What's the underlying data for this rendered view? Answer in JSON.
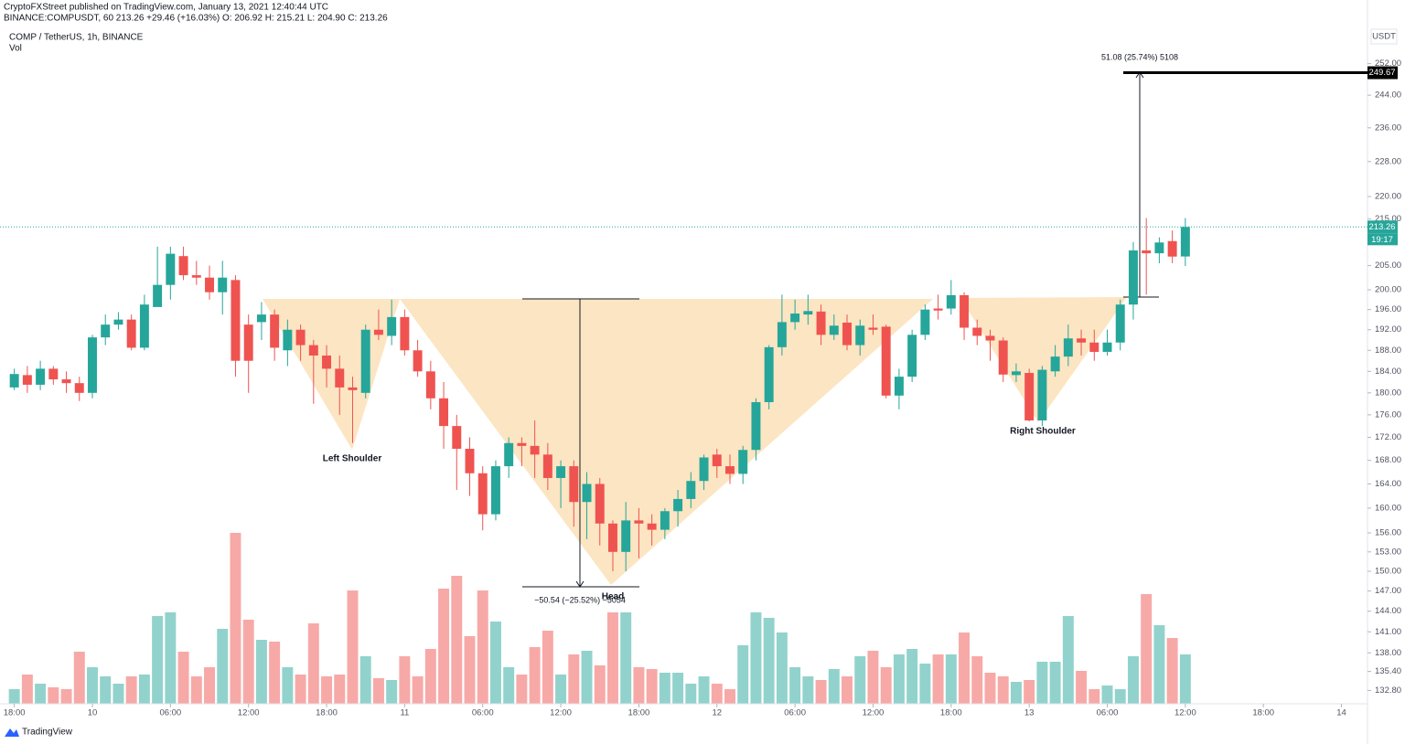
{
  "chart_data": {
    "type": "candlestick",
    "header": "CryptoFXStreet published on TradingView.com, January 13, 2021 12:40:44 UTC",
    "ohlc_line": "BINANCE:COMPUSDT, 60  213.26  +29.46 (+16.03%)  O: 206.92  H: 215.21  L: 204.90  C: 213.26",
    "title": "COMP / TetherUS, 1h, BINANCE",
    "volume_label": "Vol",
    "currency": "USDT",
    "brand": "TradingView",
    "price_label": 213.26,
    "countdown": "19:17",
    "target_price": 249.67,
    "up_color": "#26a69a",
    "down_color": "#ef5350",
    "log_scale": true,
    "annotations": {
      "left": "Left Shoulder",
      "head": "Head",
      "right": "Right Shoulder",
      "measure_up": "51.08 (25.74%) 5108",
      "measure_down": "−50.54 (−25.52%) −5054"
    },
    "open": [
      181,
      183.3,
      181.5,
      184.5,
      182.5,
      181.8,
      180,
      190.5,
      193,
      194,
      188.5,
      196.5,
      201,
      207,
      203,
      202.5,
      199.5,
      202,
      193,
      193.5,
      195,
      188,
      192,
      189,
      187,
      184.5,
      181,
      180,
      192,
      190.8,
      194.5,
      188,
      184,
      179,
      174,
      170,
      165.8,
      159,
      167,
      171,
      170.5,
      169,
      165,
      167,
      161,
      164,
      157.5,
      153,
      158,
      157.5,
      156.5,
      159.5,
      161.5,
      164.5,
      169,
      167,
      165.7,
      169.8,
      178.3,
      188.6,
      193.5,
      195,
      195.6,
      191,
      193.4,
      189,
      192.4,
      192.6,
      179.5,
      183,
      191,
      196.2,
      196.2,
      198.9,
      192.4,
      190.8,
      189.9,
      183.3,
      183.7,
      175,
      184,
      186.8,
      190.3,
      189.5,
      187.7,
      189.5,
      197,
      208.2,
      207.6,
      210.2,
      206.92
    ],
    "high": [
      184.5,
      185,
      186,
      185,
      184,
      183,
      191,
      195,
      195.5,
      195,
      199,
      209,
      209,
      209,
      206,
      205,
      206,
      203,
      195,
      197.5,
      196,
      194,
      193,
      190,
      189,
      187,
      183,
      193,
      196,
      198,
      196,
      190,
      186,
      182,
      176,
      172,
      167,
      168,
      172,
      172,
      175,
      171,
      168,
      168,
      166,
      165,
      158,
      161,
      160,
      159,
      160,
      163,
      166,
      169,
      170,
      169,
      170.5,
      179,
      189,
      199,
      198,
      199,
      197,
      195,
      195,
      194,
      195,
      193,
      184.5,
      192,
      197,
      199,
      202,
      199.5,
      194,
      192,
      190.5,
      185.5,
      184.5,
      185,
      189,
      193,
      192,
      192,
      192,
      198,
      210,
      215.2,
      211,
      212.5,
      215.21
    ],
    "low": [
      180.5,
      180,
      180.5,
      181.5,
      180,
      178.5,
      179,
      189,
      192,
      188,
      188,
      197,
      198,
      202,
      201,
      198,
      195,
      183,
      180,
      190,
      186,
      185,
      186,
      178,
      181,
      176,
      171,
      179,
      190,
      189,
      187,
      183,
      177,
      170,
      163,
      162,
      156.4,
      158,
      165,
      167,
      165,
      163,
      160,
      157,
      155,
      154,
      150,
      150,
      152,
      154,
      155,
      157,
      160,
      163,
      165,
      164,
      164,
      168,
      177,
      187,
      192,
      193,
      189,
      190,
      188,
      187,
      191,
      179,
      177,
      182,
      190,
      194,
      195,
      190,
      189,
      186,
      182,
      182,
      174.8,
      174,
      183,
      185,
      187,
      186,
      187,
      188,
      194,
      199,
      205.5,
      205.5,
      204.9
    ],
    "close": [
      183.5,
      181.5,
      184.5,
      182.5,
      181.8,
      180,
      190.5,
      193,
      194,
      188.5,
      197,
      201,
      207.5,
      203,
      202.5,
      199.5,
      202.5,
      186,
      186,
      195,
      188.5,
      192,
      189,
      187,
      184.5,
      181,
      180.5,
      192,
      191,
      194.5,
      188,
      184,
      179,
      174,
      170,
      165.8,
      159,
      167,
      171,
      170.5,
      169,
      165,
      167,
      161,
      164,
      157.5,
      153,
      158,
      157.5,
      156.5,
      159.5,
      161.5,
      164.5,
      168.5,
      167,
      165.7,
      169.8,
      178.3,
      188.6,
      193.5,
      195.2,
      195.7,
      191,
      192.8,
      189,
      192.8,
      192,
      179.5,
      183,
      191,
      196,
      195.8,
      198.9,
      192.4,
      190.8,
      189.9,
      183.4,
      184,
      175,
      184.3,
      186.8,
      190.3,
      189.5,
      187.7,
      189.5,
      197,
      208.2,
      207.6,
      209.9,
      206.9,
      213.26
    ],
    "volume": [
      16,
      32,
      22,
      18,
      16,
      57,
      40,
      30,
      22,
      30,
      32,
      96,
      100,
      57,
      30,
      40,
      82,
      187,
      92,
      70,
      68,
      40,
      32,
      88,
      30,
      32,
      124,
      52,
      28,
      26,
      52,
      30,
      60,
      126,
      140,
      74,
      124,
      90,
      40,
      32,
      62,
      80,
      32,
      54,
      58,
      42,
      100,
      100,
      40,
      38,
      34,
      34,
      22,
      30,
      22,
      16,
      64,
      100,
      94,
      78,
      40,
      30,
      26,
      38,
      30,
      52,
      58,
      40,
      54,
      60,
      44,
      54,
      54,
      78,
      52,
      34,
      30,
      24,
      26,
      46,
      46,
      96,
      36,
      16,
      20,
      16,
      52,
      120,
      86,
      72,
      54
    ],
    "volume_ylim": [
      0,
      740
    ],
    "xlim": [
      -1.1,
      104
    ],
    "xticks": [
      {
        "value": 0,
        "label": "18:00"
      },
      {
        "value": 6,
        "label": "10"
      },
      {
        "value": 12,
        "label": "06:00"
      },
      {
        "value": 18,
        "label": "12:00"
      },
      {
        "value": 24,
        "label": "18:00"
      },
      {
        "value": 30,
        "label": "11"
      },
      {
        "value": 36,
        "label": "06:00"
      },
      {
        "value": 42,
        "label": "12:00"
      },
      {
        "value": 48,
        "label": "18:00"
      },
      {
        "value": 54,
        "label": "12"
      },
      {
        "value": 60,
        "label": "06:00"
      },
      {
        "value": 66,
        "label": "12:00"
      },
      {
        "value": 72,
        "label": "18:00"
      },
      {
        "value": 78,
        "label": "13"
      },
      {
        "value": 84,
        "label": "06:00"
      },
      {
        "value": 90,
        "label": "12:00"
      },
      {
        "value": 96,
        "label": "18:00"
      },
      {
        "value": 102,
        "label": "14"
      }
    ],
    "ylim": [
      131,
      261.5
    ],
    "yticks": [
      {
        "value": 252,
        "label": "252.00"
      },
      {
        "value": 244,
        "label": "244.00"
      },
      {
        "value": 236,
        "label": "236.00"
      },
      {
        "value": 228,
        "label": "228.00"
      },
      {
        "value": 220,
        "label": "220.00"
      },
      {
        "value": 215,
        "label": "215.00"
      },
      {
        "value": 205,
        "label": "205.00"
      },
      {
        "value": 200,
        "label": "200.00"
      },
      {
        "value": 196,
        "label": "196.00"
      },
      {
        "value": 192,
        "label": "192.00"
      },
      {
        "value": 188,
        "label": "188.00"
      },
      {
        "value": 184,
        "label": "184.00"
      },
      {
        "value": 180,
        "label": "180.00"
      },
      {
        "value": 176,
        "label": "176.00"
      },
      {
        "value": 172,
        "label": "172.00"
      },
      {
        "value": 168,
        "label": "168.00"
      },
      {
        "value": 164,
        "label": "164.00"
      },
      {
        "value": 160,
        "label": "160.00"
      },
      {
        "value": 156,
        "label": "156.00"
      },
      {
        "value": 153,
        "label": "153.00"
      },
      {
        "value": 150,
        "label": "150.00"
      },
      {
        "value": 147,
        "label": "147.00"
      },
      {
        "value": 144,
        "label": "144.00"
      },
      {
        "value": 141,
        "label": "141.00"
      },
      {
        "value": 138,
        "label": "138.00"
      },
      {
        "value": 135.4,
        "label": "135.40"
      },
      {
        "value": 132.8,
        "label": "132.80"
      }
    ]
  }
}
